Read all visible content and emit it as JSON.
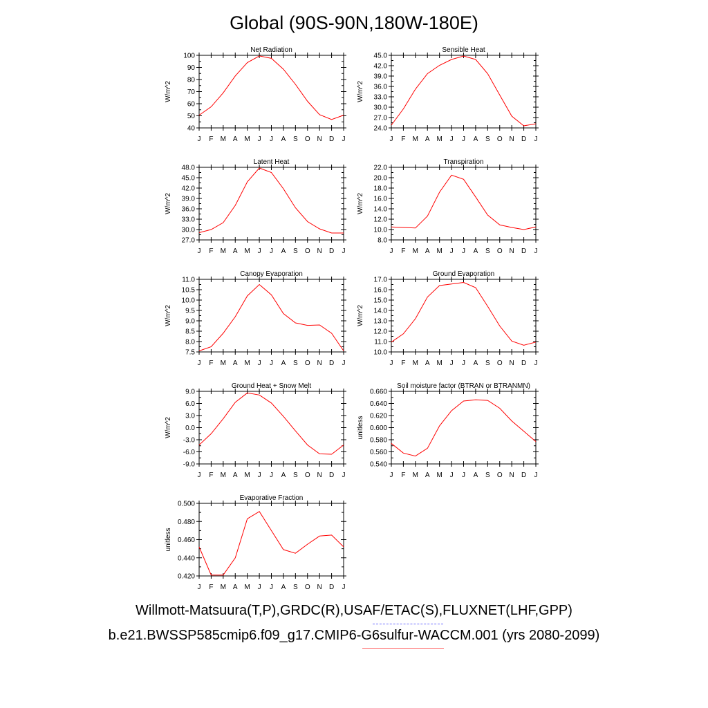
{
  "title": "Global (90S-90N,180W-180E)",
  "months": [
    "J",
    "F",
    "M",
    "A",
    "M",
    "J",
    "J",
    "A",
    "S",
    "O",
    "N",
    "D",
    "J"
  ],
  "line_color": "#ff0000",
  "chart_data": [
    {
      "type": "line",
      "title": "Net Radiation",
      "ylabel": "W/m^2",
      "ylim": [
        40,
        100
      ],
      "yticks": [
        "100",
        "90",
        "80",
        "70",
        "60",
        "50",
        "40"
      ],
      "values": [
        50.5,
        57.5,
        69,
        83,
        94,
        99.5,
        97.5,
        88.5,
        76,
        62,
        51,
        47,
        50.5
      ]
    },
    {
      "type": "line",
      "title": "Sensible Heat",
      "ylabel": "W/m^2",
      "ylim": [
        24,
        45
      ],
      "yticks": [
        "45.0",
        "42.0",
        "39.0",
        "36.0",
        "33.0",
        "30.0",
        "27.0",
        "24.0"
      ],
      "values": [
        24.8,
        29.5,
        35.2,
        39.7,
        42.1,
        43.8,
        44.8,
        43.8,
        39.7,
        33.5,
        27.4,
        24.6,
        25.2
      ]
    },
    {
      "type": "line",
      "title": "Latent Heat",
      "ylabel": "W/m^2",
      "ylim": [
        27,
        48
      ],
      "yticks": [
        "48.0",
        "45.0",
        "42.0",
        "39.0",
        "36.0",
        "33.0",
        "30.0",
        "27.0"
      ],
      "values": [
        29.1,
        30.0,
        32.0,
        37.0,
        43.8,
        47.8,
        46.5,
        41.8,
        36.3,
        32.3,
        30.2,
        29.0,
        29.0
      ]
    },
    {
      "type": "line",
      "title": "Transpiration",
      "ylabel": "W/m^2",
      "ylim": [
        8,
        22
      ],
      "yticks": [
        "22.0",
        "20.0",
        "18.0",
        "16.0",
        "14.0",
        "12.0",
        "10.0",
        "8.0"
      ],
      "values": [
        10.5,
        10.4,
        10.3,
        12.6,
        17.2,
        20.5,
        19.7,
        16.3,
        12.8,
        10.9,
        10.4,
        10.0,
        10.5
      ]
    },
    {
      "type": "line",
      "title": "Canopy Evaporation",
      "ylabel": "W/m^2",
      "ylim": [
        7.5,
        11.0
      ],
      "yticks": [
        "11.0",
        "10.5",
        "10.0",
        "9.5",
        "9.0",
        "8.5",
        "8.0",
        "7.5"
      ],
      "values": [
        7.55,
        7.75,
        8.4,
        9.2,
        10.2,
        10.75,
        10.25,
        9.35,
        8.9,
        8.78,
        8.8,
        8.4,
        7.55
      ]
    },
    {
      "type": "line",
      "title": "Ground Evaporation",
      "ylabel": "W/m^2",
      "ylim": [
        10,
        17
      ],
      "yticks": [
        "17.0",
        "16.0",
        "15.0",
        "14.0",
        "13.0",
        "12.0",
        "11.0",
        "10.0"
      ],
      "values": [
        10.95,
        11.75,
        13.2,
        15.3,
        16.4,
        16.55,
        16.7,
        16.2,
        14.4,
        12.5,
        11.05,
        10.65,
        10.95
      ]
    },
    {
      "type": "line",
      "title": "Ground Heat + Snow Melt",
      "ylabel": "W/m^2",
      "ylim": [
        -9,
        9
      ],
      "yticks": [
        "9.0",
        "6.0",
        "3.0",
        "0.0",
        "-3.0",
        "-6.0",
        "-9.0"
      ],
      "values": [
        -4.3,
        -1.5,
        2.2,
        6.3,
        8.6,
        8.1,
        6.1,
        2.8,
        -0.8,
        -4.3,
        -6.5,
        -6.6,
        -4.3
      ]
    },
    {
      "type": "line",
      "title": "Soil moisture factor (BTRAN or BTRANMN)",
      "ylabel": "unitless",
      "ylim": [
        0.54,
        0.66
      ],
      "yticks": [
        "0.660",
        "0.640",
        "0.620",
        "0.600",
        "0.580",
        "0.560",
        "0.540"
      ],
      "values": [
        0.574,
        0.558,
        0.553,
        0.566,
        0.603,
        0.628,
        0.644,
        0.646,
        0.645,
        0.632,
        0.611,
        0.594,
        0.577
      ]
    },
    {
      "type": "line",
      "title": "Evaporative Fraction",
      "ylabel": "unitless",
      "ylim": [
        0.42,
        0.5
      ],
      "yticks": [
        "0.500",
        "0.480",
        "0.460",
        "0.440",
        "0.420"
      ],
      "values": [
        0.452,
        0.421,
        0.421,
        0.44,
        0.483,
        0.491,
        0.47,
        0.449,
        0.445,
        0.455,
        0.464,
        0.465,
        0.452
      ]
    }
  ],
  "footer": {
    "observations": "Willmott-Matsuura(T,P),GRDC(R),USAF/ETAC(S),FLUXNET(LHF,GPP)",
    "case": "b.e21.BWSSP585cmip6.f09_g17.CMIP6-G6sulfur-WACCM.001 (yrs 2080-2099)"
  }
}
